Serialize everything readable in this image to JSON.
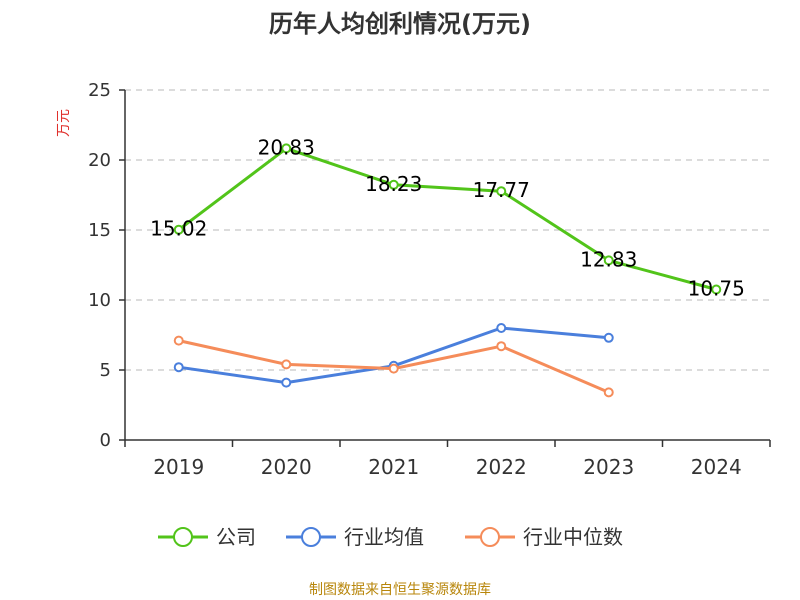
{
  "chart_data": {
    "type": "line",
    "title": "历年人均创利情况(万元)",
    "ylabel": "万元",
    "xlabel": "",
    "categories": [
      "2019",
      "2020",
      "2021",
      "2022",
      "2023",
      "2024"
    ],
    "ylim": [
      0,
      25
    ],
    "yticks": [
      0,
      5,
      10,
      15,
      20,
      25
    ],
    "grid": true,
    "legend_position": "bottom",
    "series": [
      {
        "name": "公司",
        "color": "#52c41a",
        "values": [
          15.02,
          20.83,
          18.23,
          17.77,
          12.83,
          10.75
        ],
        "data_labels": [
          "15.02",
          "20.83",
          "18.23",
          "17.77",
          "12.83",
          "10.75"
        ]
      },
      {
        "name": "行业均值",
        "color": "#4a7fdc",
        "values": [
          5.2,
          4.1,
          5.3,
          8.0,
          7.3,
          null
        ]
      },
      {
        "name": "行业中位数",
        "color": "#f58c5a",
        "values": [
          7.1,
          5.4,
          5.1,
          6.7,
          3.4,
          null
        ]
      }
    ]
  },
  "source_text": "制图数据来自恒生聚源数据库"
}
